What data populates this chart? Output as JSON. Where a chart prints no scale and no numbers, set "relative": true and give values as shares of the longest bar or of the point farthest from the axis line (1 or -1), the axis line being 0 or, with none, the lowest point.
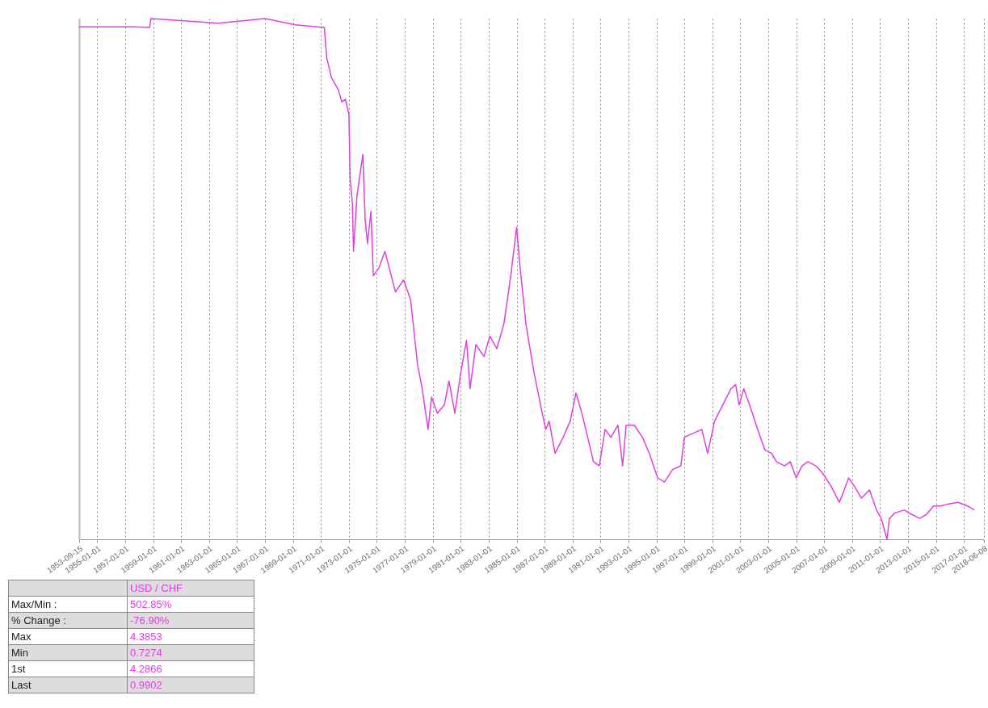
{
  "chart_data": {
    "type": "line",
    "relative": true,
    "grid": "x",
    "x": [
      "1953-09-15",
      "1957-08",
      "1958-10",
      "1958-11",
      "1963-09",
      "1967-01",
      "1969-03",
      "1971-04",
      "1971-06",
      "1971-10",
      "1972-04",
      "1972-07",
      "1972-10",
      "1973-01",
      "1973-02",
      "1973-04",
      "1973-05",
      "1973-08",
      "1974-01",
      "1974-03",
      "1974-05",
      "1974-08",
      "1974-10",
      "1975-03",
      "1975-08",
      "1976-05",
      "1976-12",
      "1977-06",
      "1977-12",
      "1978-04",
      "1978-09",
      "1978-12",
      "1979-05",
      "1979-11",
      "1980-03",
      "1980-08",
      "1981-01",
      "1981-06",
      "1981-09",
      "1982-02",
      "1982-09",
      "1983-02",
      "1983-08",
      "1984-02",
      "1984-08",
      "1985-01",
      "1985-04",
      "1985-09",
      "1986-04",
      "1986-11",
      "1987-02",
      "1987-05",
      "1987-10",
      "1988-05",
      "1988-11",
      "1989-04",
      "1989-09",
      "1990-02",
      "1990-07",
      "1990-12",
      "1991-05",
      "1991-10",
      "1992-04",
      "1992-08",
      "1992-11",
      "1993-06",
      "1994-01",
      "1994-07",
      "1995-02",
      "1995-08",
      "1996-03",
      "1996-10",
      "1997-01",
      "1997-08",
      "1998-04",
      "1998-09",
      "1999-03",
      "1999-10",
      "2000-05",
      "2000-09",
      "2000-12",
      "2001-04",
      "2001-09",
      "2002-04",
      "2002-10",
      "2003-04",
      "2003-08",
      "2004-03",
      "2004-08",
      "2005-01",
      "2005-06",
      "2005-11",
      "2006-06",
      "2006-12",
      "2007-07",
      "2008-02",
      "2008-05",
      "2008-10",
      "2009-03",
      "2009-09",
      "2010-04",
      "2010-10",
      "2011-02",
      "2011-07",
      "2011-09",
      "2012-02",
      "2012-10",
      "2013-04",
      "2013-11",
      "2014-05",
      "2014-11",
      "2015-05",
      "2015-12",
      "2016-08",
      "2017-04",
      "2017-10"
    ],
    "series": [
      {
        "name": "USD / CHF",
        "color": "#e040e0",
        "values": [
          0.984,
          0.984,
          0.983,
          1,
          0.991,
          1,
          0.988,
          0.983,
          0.925,
          0.887,
          0.863,
          0.84,
          0.845,
          0.817,
          0.693,
          0.646,
          0.553,
          0.661,
          0.739,
          0.615,
          0.568,
          0.63,
          0.506,
          0.522,
          0.553,
          0.475,
          0.498,
          0.46,
          0.335,
          0.289,
          0.211,
          0.273,
          0.242,
          0.258,
          0.304,
          0.242,
          0.32,
          0.382,
          0.289,
          0.374,
          0.351,
          0.39,
          0.366,
          0.413,
          0.506,
          0.599,
          0.522,
          0.413,
          0.32,
          0.242,
          0.211,
          0.227,
          0.165,
          0.196,
          0.227,
          0.281,
          0.242,
          0.196,
          0.149,
          0.141,
          0.211,
          0.196,
          0.219,
          0.141,
          0.219,
          0.219,
          0.196,
          0.165,
          0.118,
          0.11,
          0.134,
          0.141,
          0.196,
          0.203,
          0.211,
          0.165,
          0.227,
          0.258,
          0.289,
          0.297,
          0.258,
          0.289,
          0.258,
          0.211,
          0.172,
          0.165,
          0.149,
          0.141,
          0.149,
          0.118,
          0.141,
          0.149,
          0.141,
          0.126,
          0.102,
          0.071,
          0.087,
          0.118,
          0.102,
          0.079,
          0.095,
          0.056,
          0.04,
          0,
          0.04,
          0.051,
          0.056,
          0.048,
          0.04,
          0.048,
          0.064,
          0.064,
          0.068,
          0.071,
          0.064,
          0.056
        ]
      }
    ],
    "xlim": [
      "1953-09-15",
      "2018-06-08"
    ],
    "xticks": [
      "1953-09-15",
      "1955-01-01",
      "1957-01-01",
      "1959-01-01",
      "1961-01-01",
      "1963-01-01",
      "1965-01-01",
      "1967-01-01",
      "1969-01-01",
      "1971-01-01",
      "1973-01-01",
      "1975-01-01",
      "1977-01-01",
      "1979-01-01",
      "1981-01-01",
      "1983-01-01",
      "1985-01-01",
      "1987-01-01",
      "1989-01-01",
      "1991-01-01",
      "1993-01-01",
      "1995-01-01",
      "1997-01-01",
      "1999-01-01",
      "2001-01-01",
      "2003-01-01",
      "2005-01-01",
      "2007-01-01",
      "2009-01-01",
      "2011-01-01",
      "2013-01-01",
      "2015-01-01",
      "2017-01-01",
      "2018-06-08"
    ],
    "annotations": [
      "Max/Min :",
      "502.85%",
      "% Change :",
      "-76.90%",
      "Max",
      "4.3853",
      "Min",
      "0.7274",
      "1st",
      "4.2866",
      "Last",
      "0.9902"
    ]
  }
}
